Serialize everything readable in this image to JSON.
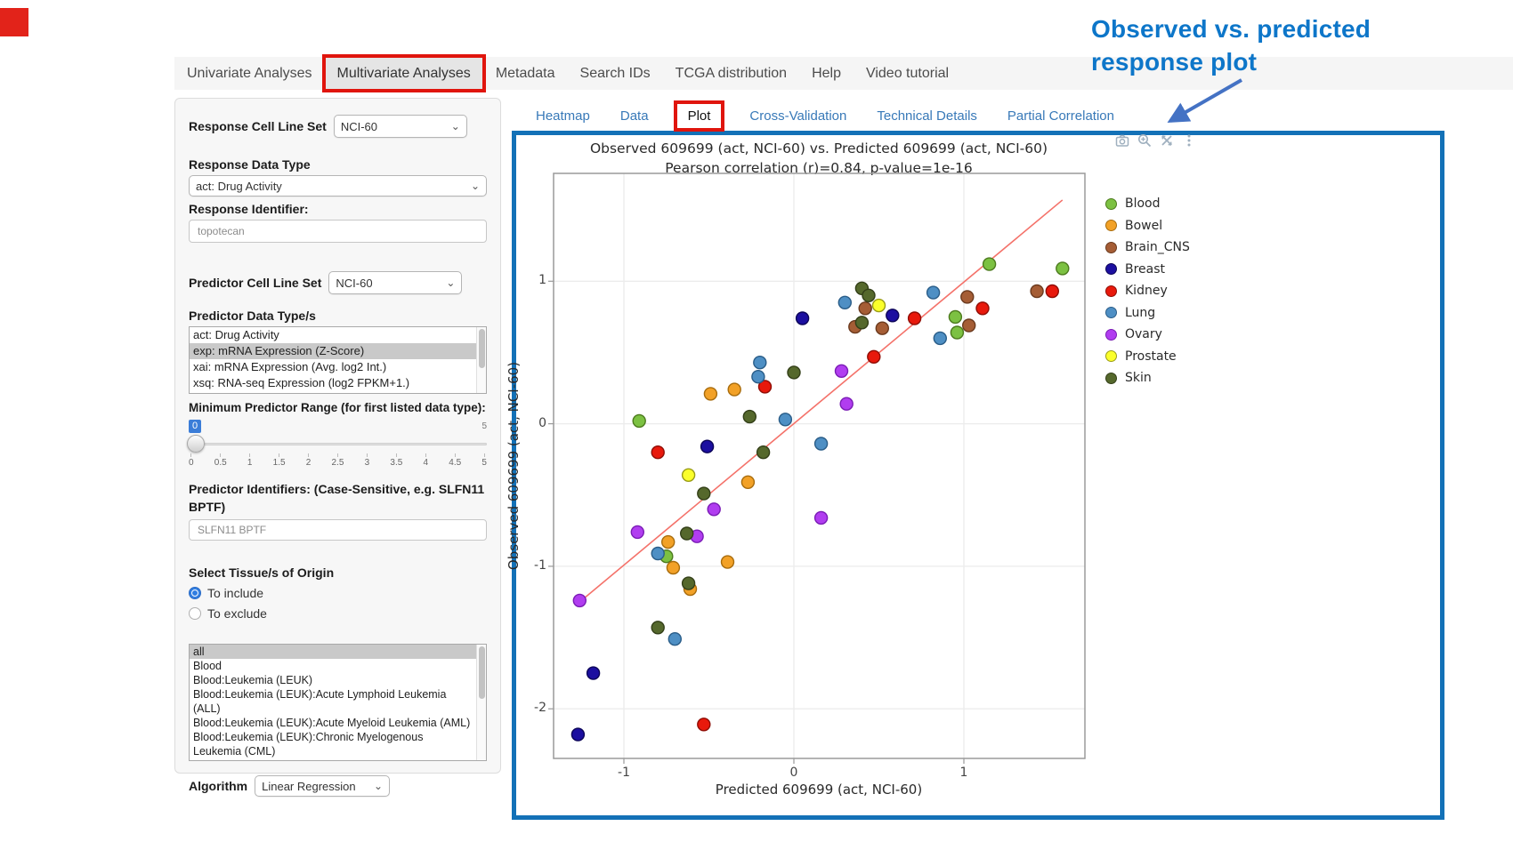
{
  "window": {
    "logo_color": "#e2231a"
  },
  "nav": {
    "items": [
      {
        "label": "Univariate Analyses",
        "active": false,
        "highlighted": false
      },
      {
        "label": "Multivariate Analyses",
        "active": true,
        "highlighted": true
      },
      {
        "label": "Metadata",
        "active": false,
        "highlighted": false
      },
      {
        "label": "Search IDs",
        "active": false,
        "highlighted": false
      },
      {
        "label": "TCGA distribution",
        "active": false,
        "highlighted": false
      },
      {
        "label": "Help",
        "active": false,
        "highlighted": false
      },
      {
        "label": "Video tutorial",
        "active": false,
        "highlighted": false
      }
    ]
  },
  "sidebar": {
    "response_cell_line_set": {
      "label": "Response Cell Line Set",
      "value": "NCI-60"
    },
    "response_data_type": {
      "label": "Response Data Type",
      "value": "act: Drug Activity"
    },
    "response_identifier": {
      "label": "Response Identifier:",
      "value": "topotecan"
    },
    "predictor_cell_line_set": {
      "label": "Predictor Cell Line Set",
      "value": "NCI-60"
    },
    "predictor_data_types": {
      "label": "Predictor Data Type/s",
      "options": [
        "act: Drug Activity",
        "exp: mRNA Expression (Z-Score)",
        "xai: mRNA Expression (Avg. log2 Int.)",
        "xsq: RNA-seq Expression (log2 FPKM+1.)"
      ],
      "selected": "exp: mRNA Expression (Z-Score)"
    },
    "min_predictor_range": {
      "label": "Minimum Predictor Range (for first listed data type):",
      "value": "0",
      "max_label": "5",
      "ticks": [
        "0",
        "0.5",
        "1",
        "1.5",
        "2",
        "2.5",
        "3",
        "3.5",
        "4",
        "4.5",
        "5"
      ]
    },
    "predictor_identifiers": {
      "label": "Predictor Identifiers: (Case-Sensitive, e.g. SLFN11 BPTF)",
      "value": "SLFN11 BPTF"
    },
    "tissue_origin": {
      "label": "Select Tissue/s of Origin",
      "options": [
        {
          "label": "To include",
          "selected": true
        },
        {
          "label": "To exclude",
          "selected": false
        }
      ]
    },
    "tissue_list": {
      "options": [
        "all",
        "Blood",
        "Blood:Leukemia (LEUK)",
        "Blood:Leukemia (LEUK):Acute Lymphoid Leukemia (ALL)",
        "Blood:Leukemia (LEUK):Acute Myeloid Leukemia (AML)",
        "Blood:Leukemia (LEUK):Chronic Myelogenous Leukemia (CML)"
      ],
      "selected": "all"
    },
    "algorithm": {
      "label": "Algorithm",
      "value": "Linear Regression"
    }
  },
  "tabs": {
    "items": [
      {
        "label": "Heatmap",
        "active": false
      },
      {
        "label": "Data",
        "active": false
      },
      {
        "label": "Plot",
        "active": true
      },
      {
        "label": "Cross-Validation",
        "active": false
      },
      {
        "label": "Technical Details",
        "active": false
      },
      {
        "label": "Partial Correlation",
        "active": false
      }
    ]
  },
  "modebar": {
    "icons": [
      "camera-icon",
      "zoom-icon",
      "pan-icon",
      "more-icon"
    ]
  },
  "annotation": {
    "text_line1": "Observed  vs. predicted",
    "text_line2": "response plot",
    "color": "#0d76c9",
    "arrow_color": "#4472c4"
  },
  "chart_data": {
    "type": "scatter",
    "title_line1": "Observed 609699 (act, NCI-60) vs. Predicted 609699 (act, NCI-60)",
    "title_line2": "Pearson correlation (r)=0.84, p-value=1e-16",
    "xlabel": "Predicted 609699 (act, NCI-60)",
    "ylabel": "Observed 609699 (act, NCI-60)",
    "xlim": [
      -1.41,
      1.71
    ],
    "ylim": [
      -2.35,
      1.76
    ],
    "xticks": [
      -1,
      0,
      1
    ],
    "yticks": [
      1,
      0,
      -1,
      -2
    ],
    "grid": true,
    "legend_position": "right",
    "regression_line": {
      "points": [
        [
          -1.26,
          -1.25
        ],
        [
          1.58,
          1.57
        ]
      ],
      "color": "#f4726a"
    },
    "series": [
      {
        "name": "Blood",
        "color": "#7cc142",
        "stroke": "#4c7a1d",
        "points": [
          [
            -0.91,
            0.02
          ],
          [
            -0.75,
            -0.93
          ],
          [
            0.95,
            0.75
          ],
          [
            0.96,
            0.64
          ],
          [
            1.15,
            1.12
          ],
          [
            1.58,
            1.09
          ]
        ]
      },
      {
        "name": "Bowel",
        "color": "#f2a127",
        "stroke": "#a86c0d",
        "points": [
          [
            -0.49,
            0.21
          ],
          [
            -0.35,
            0.24
          ],
          [
            -0.27,
            -0.41
          ],
          [
            -0.74,
            -0.83
          ],
          [
            -0.71,
            -1.01
          ],
          [
            -0.39,
            -0.97
          ],
          [
            -0.61,
            -1.16
          ]
        ]
      },
      {
        "name": "Brain_CNS",
        "color": "#a55d35",
        "stroke": "#6b3a1e",
        "points": [
          [
            0.42,
            0.81
          ],
          [
            0.36,
            0.68
          ],
          [
            0.52,
            0.67
          ],
          [
            1.02,
            0.89
          ],
          [
            1.03,
            0.69
          ],
          [
            1.43,
            0.93
          ]
        ]
      },
      {
        "name": "Breast",
        "color": "#1c0fa0",
        "stroke": "#0c0558",
        "points": [
          [
            0.05,
            0.74
          ],
          [
            0.58,
            0.76
          ],
          [
            -0.51,
            -0.16
          ],
          [
            -1.18,
            -1.75
          ],
          [
            -1.27,
            -2.18
          ]
        ]
      },
      {
        "name": "Kidney",
        "color": "#e8190c",
        "stroke": "#8f0d05",
        "points": [
          [
            -0.17,
            0.26
          ],
          [
            0.47,
            0.47
          ],
          [
            0.71,
            0.74
          ],
          [
            1.11,
            0.81
          ],
          [
            1.52,
            0.93
          ],
          [
            -0.8,
            -0.2
          ],
          [
            -0.53,
            -2.11
          ]
        ]
      },
      {
        "name": "Lung",
        "color": "#4e8fc4",
        "stroke": "#2a5d88",
        "points": [
          [
            -0.2,
            0.43
          ],
          [
            -0.21,
            0.33
          ],
          [
            -0.05,
            0.03
          ],
          [
            0.3,
            0.85
          ],
          [
            0.82,
            0.92
          ],
          [
            0.86,
            0.6
          ],
          [
            0.16,
            -0.14
          ],
          [
            -0.8,
            -0.91
          ],
          [
            -0.7,
            -1.51
          ]
        ]
      },
      {
        "name": "Ovary",
        "color": "#b13df0",
        "stroke": "#7a1cb5",
        "points": [
          [
            0.28,
            0.37
          ],
          [
            0.31,
            0.14
          ],
          [
            -0.47,
            -0.6
          ],
          [
            0.16,
            -0.66
          ],
          [
            -0.92,
            -0.76
          ],
          [
            -0.57,
            -0.79
          ],
          [
            -1.26,
            -1.24
          ]
        ]
      },
      {
        "name": "Prostate",
        "color": "#fbff2b",
        "stroke": "#9a9c17",
        "points": [
          [
            0.5,
            0.83
          ],
          [
            -0.62,
            -0.36
          ]
        ]
      },
      {
        "name": "Skin",
        "color": "#55682c",
        "stroke": "#333f18",
        "points": [
          [
            -0.26,
            0.05
          ],
          [
            0.0,
            0.36
          ],
          [
            0.4,
            0.95
          ],
          [
            0.44,
            0.9
          ],
          [
            0.4,
            0.71
          ],
          [
            -0.53,
            -0.49
          ],
          [
            -0.18,
            -0.2
          ],
          [
            -0.63,
            -0.77
          ],
          [
            -0.62,
            -1.12
          ],
          [
            -0.8,
            -1.43
          ]
        ]
      }
    ]
  }
}
